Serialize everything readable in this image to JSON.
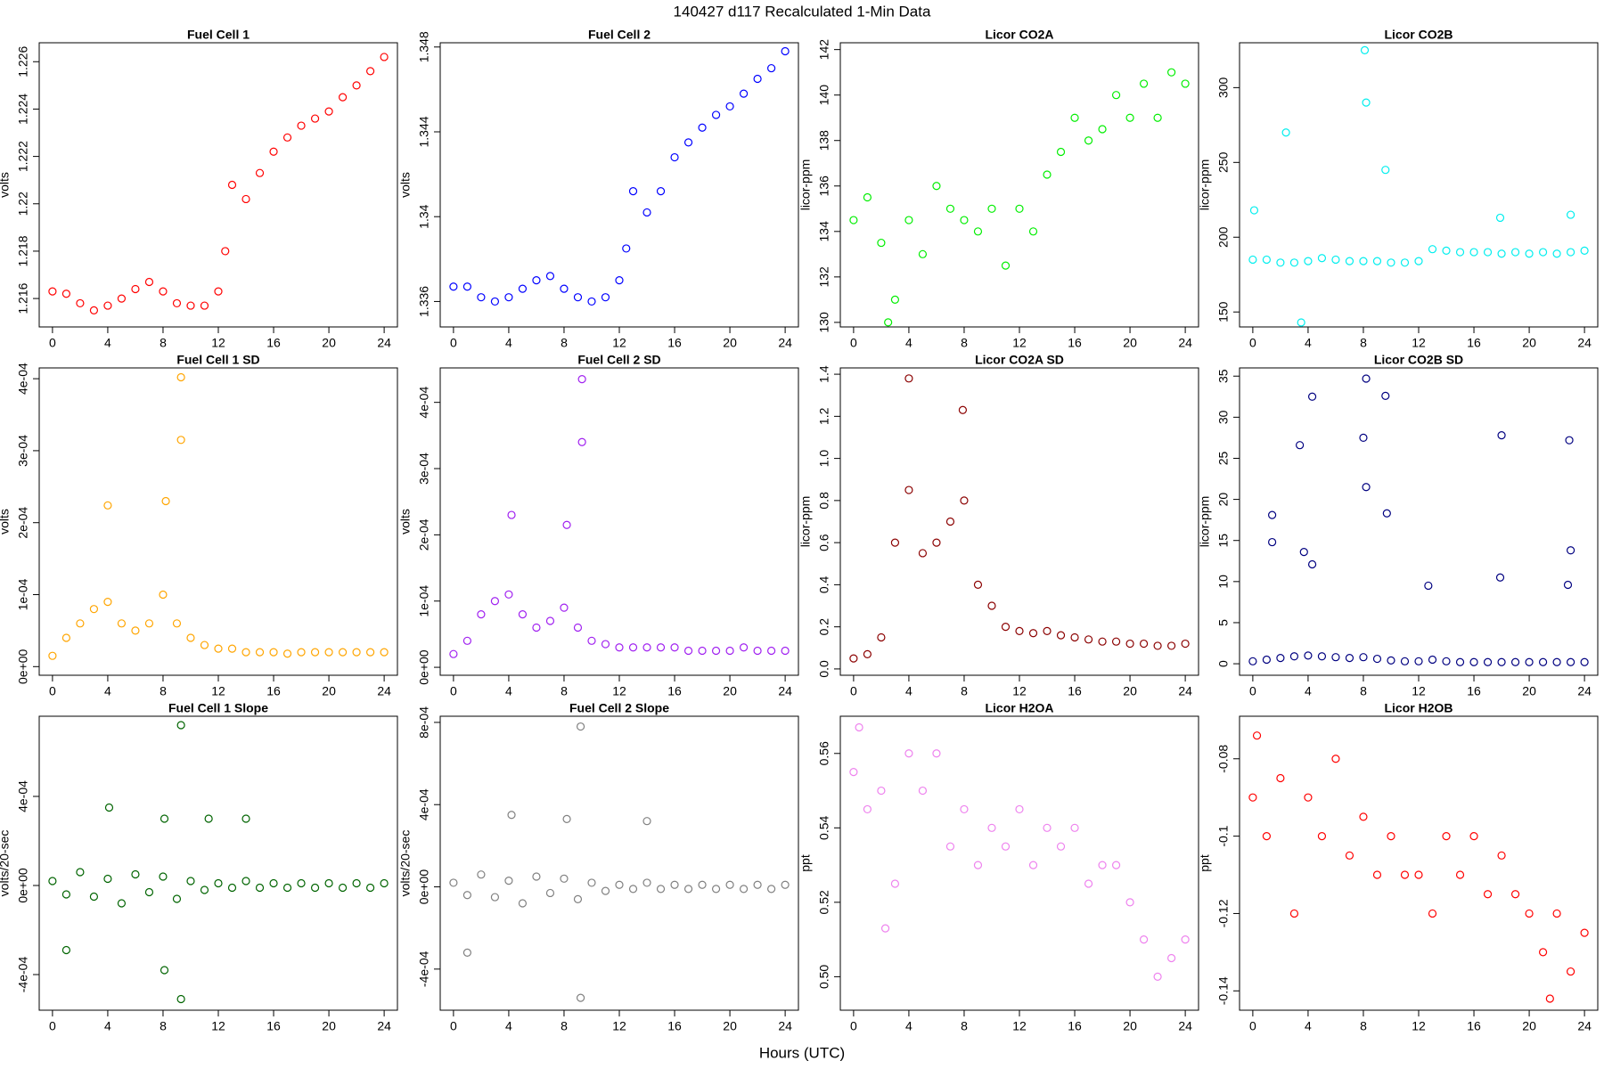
{
  "title": "140427   d117   Recalculated 1-Min Data",
  "xlabel": "Hours (UTC)",
  "chart_data": [
    {
      "type": "scatter",
      "title": "Fuel Cell 1",
      "ylabel": "volts",
      "color": "#ff0000",
      "x": [
        0,
        1,
        2,
        3,
        4,
        5,
        6,
        7,
        8,
        9,
        10,
        11,
        12,
        12.5,
        13,
        14,
        15,
        16,
        17,
        18,
        19,
        20,
        21,
        22,
        23,
        24
      ],
      "values": [
        1.2163,
        1.2162,
        1.2158,
        1.2155,
        1.2157,
        1.216,
        1.2164,
        1.2167,
        1.2163,
        1.2158,
        1.2157,
        1.2157,
        1.2163,
        1.218,
        1.2208,
        1.2202,
        1.2213,
        1.2222,
        1.2228,
        1.2233,
        1.2236,
        1.2239,
        1.2245,
        1.225,
        1.2256,
        1.2262
      ],
      "xlim": [
        -0.96,
        24.96
      ],
      "xticks": [
        0,
        4,
        8,
        12,
        16,
        20,
        24
      ],
      "ylim": [
        1.2148,
        1.2268
      ],
      "yticks": [
        1.216,
        1.218,
        1.22,
        1.222,
        1.224,
        1.226
      ]
    },
    {
      "type": "scatter",
      "title": "Fuel Cell 2",
      "ylabel": "volts",
      "color": "#0000ff",
      "x": [
        0,
        1,
        2,
        3,
        4,
        5,
        6,
        7,
        8,
        9,
        10,
        11,
        12,
        12.5,
        13,
        14,
        15,
        16,
        17,
        18,
        19,
        20,
        21,
        22,
        23,
        24
      ],
      "values": [
        1.3367,
        1.3367,
        1.3362,
        1.336,
        1.3362,
        1.3366,
        1.337,
        1.3372,
        1.3366,
        1.3362,
        1.336,
        1.3362,
        1.337,
        1.3385,
        1.3412,
        1.3402,
        1.3412,
        1.3428,
        1.3435,
        1.3442,
        1.3448,
        1.3452,
        1.3458,
        1.3465,
        1.347,
        1.3478
      ],
      "xlim": [
        -0.96,
        24.96
      ],
      "xticks": [
        0,
        4,
        8,
        12,
        16,
        20,
        24
      ],
      "ylim": [
        1.3348,
        1.3482
      ],
      "yticks": [
        1.336,
        1.34,
        1.344,
        1.348
      ]
    },
    {
      "type": "scatter",
      "title": "Licor CO2A",
      "ylabel": "licor-ppm",
      "color": "#00ee00",
      "x": [
        0,
        1,
        2,
        2.5,
        3,
        4,
        5,
        6,
        7,
        8,
        9,
        10,
        11,
        12,
        13,
        14,
        15,
        16,
        17,
        18,
        19,
        20,
        21,
        22,
        23,
        24
      ],
      "values": [
        134.5,
        135.5,
        133.5,
        130,
        131,
        134.5,
        133,
        136,
        135,
        134.5,
        134,
        135,
        132.5,
        135,
        134,
        136.5,
        137.5,
        139,
        138,
        138.5,
        140,
        139,
        140.5,
        139,
        141,
        140.5
      ],
      "xlim": [
        -0.96,
        24.96
      ],
      "xticks": [
        0,
        4,
        8,
        12,
        16,
        20,
        24
      ],
      "ylim": [
        129.8,
        142.3
      ],
      "yticks": [
        130,
        132,
        134,
        136,
        138,
        140,
        142
      ]
    },
    {
      "type": "scatter",
      "title": "Licor CO2B",
      "ylabel": "licor-ppm",
      "color": "#00eeee",
      "x": [
        0,
        1,
        2,
        3,
        4,
        5,
        6,
        7,
        8,
        9,
        10,
        11,
        12,
        13,
        14,
        15,
        16,
        17,
        18,
        19,
        20,
        21,
        22,
        23,
        24,
        8.1,
        8.2,
        3.5,
        2.4,
        9.6,
        17.9,
        23,
        0.1
      ],
      "values": [
        185,
        185,
        183,
        183,
        184,
        186,
        185,
        184,
        184,
        184,
        183,
        183,
        184,
        192,
        191,
        190,
        190,
        190,
        189,
        190,
        189,
        190,
        189,
        190,
        191,
        325,
        290,
        143,
        270,
        245,
        213,
        215,
        218
      ],
      "xlim": [
        -0.96,
        24.96
      ],
      "xticks": [
        0,
        4,
        8,
        12,
        16,
        20,
        24
      ],
      "ylim": [
        140,
        330
      ],
      "yticks": [
        150,
        200,
        250,
        300
      ]
    },
    {
      "type": "scatter",
      "title": "Fuel Cell 1 SD",
      "ylabel": "volts",
      "color": "#ffa500",
      "x": [
        0,
        1,
        2,
        3,
        4,
        5,
        6,
        7,
        8,
        9,
        10,
        11,
        12,
        13,
        14,
        15,
        16,
        17,
        18,
        19,
        20,
        21,
        22,
        23,
        24,
        9.3,
        9.3,
        8.2,
        4
      ],
      "values": [
        1.5e-05,
        4e-05,
        6e-05,
        8e-05,
        9e-05,
        6e-05,
        5e-05,
        6e-05,
        0.0001,
        6e-05,
        4e-05,
        3e-05,
        2.5e-05,
        2.5e-05,
        2e-05,
        2e-05,
        2e-05,
        1.8e-05,
        2e-05,
        2e-05,
        2e-05,
        2e-05,
        2e-05,
        2e-05,
        2e-05,
        0.000402,
        0.000315,
        0.00023,
        0.000224
      ],
      "xlim": [
        -0.96,
        24.96
      ],
      "xticks": [
        0,
        4,
        8,
        12,
        16,
        20,
        24
      ],
      "ylim": [
        -1.2e-05,
        0.000415
      ],
      "yticks": [
        {
          "value": 0,
          "label": "0e+00"
        },
        {
          "value": 0.0001,
          "label": "1e-04"
        },
        {
          "value": 0.0002,
          "label": "2e-04"
        },
        {
          "value": 0.0003,
          "label": "3e-04"
        },
        {
          "value": 0.0004,
          "label": "4e-04"
        }
      ]
    },
    {
      "type": "scatter",
      "title": "Fuel Cell 2 SD",
      "ylabel": "volts",
      "color": "#a020f0",
      "x": [
        0,
        1,
        2,
        3,
        4,
        5,
        6,
        7,
        8,
        9,
        10,
        11,
        12,
        13,
        14,
        15,
        16,
        17,
        18,
        19,
        20,
        21,
        22,
        23,
        24,
        9.3,
        9.3,
        4.2,
        8.2
      ],
      "values": [
        2e-05,
        4e-05,
        8e-05,
        0.0001,
        0.00011,
        8e-05,
        6e-05,
        7e-05,
        9e-05,
        6e-05,
        4e-05,
        3.5e-05,
        3e-05,
        3e-05,
        3e-05,
        3e-05,
        3e-05,
        2.5e-05,
        2.5e-05,
        2.5e-05,
        2.5e-05,
        3e-05,
        2.5e-05,
        2.5e-05,
        2.5e-05,
        0.000435,
        0.00034,
        0.00023,
        0.000215
      ],
      "xlim": [
        -0.96,
        24.96
      ],
      "xticks": [
        0,
        4,
        8,
        12,
        16,
        20,
        24
      ],
      "ylim": [
        -1.2e-05,
        0.000452
      ],
      "yticks": [
        {
          "value": 0,
          "label": "0e+00"
        },
        {
          "value": 0.0001,
          "label": "1e-04"
        },
        {
          "value": 0.0002,
          "label": "2e-04"
        },
        {
          "value": 0.0003,
          "label": "3e-04"
        },
        {
          "value": 0.0004,
          "label": "4e-04"
        }
      ]
    },
    {
      "type": "scatter",
      "title": "Licor CO2A SD",
      "ylabel": "licor-ppm",
      "color": "#8b0000",
      "x": [
        0,
        1,
        2,
        3,
        4,
        5,
        6,
        7,
        8,
        9,
        10,
        11,
        12,
        13,
        14,
        15,
        16,
        17,
        18,
        19,
        20,
        21,
        22,
        23,
        24,
        4,
        7.9
      ],
      "values": [
        0.05,
        0.07,
        0.15,
        0.6,
        0.85,
        0.55,
        0.6,
        0.7,
        0.8,
        0.4,
        0.3,
        0.2,
        0.18,
        0.17,
        0.18,
        0.16,
        0.15,
        0.14,
        0.13,
        0.13,
        0.12,
        0.12,
        0.11,
        0.11,
        0.12,
        1.38,
        1.23
      ],
      "xlim": [
        -0.96,
        24.96
      ],
      "xticks": [
        0,
        4,
        8,
        12,
        16,
        20,
        24
      ],
      "ylim": [
        -0.03,
        1.43
      ],
      "yticks": [
        {
          "value": 0,
          "label": "0.0"
        },
        {
          "value": 0.2,
          "label": "0.2"
        },
        {
          "value": 0.4,
          "label": "0.4"
        },
        {
          "value": 0.6,
          "label": "0.6"
        },
        {
          "value": 0.8,
          "label": "0.8"
        },
        {
          "value": 1,
          "label": "1.0"
        },
        {
          "value": 1.2,
          "label": "1.2"
        },
        {
          "value": 1.4,
          "label": "1.4"
        }
      ]
    },
    {
      "type": "scatter",
      "title": "Licor CO2B SD",
      "ylabel": "licor-ppm",
      "color": "#000080",
      "x": [
        0,
        1,
        2,
        3,
        4,
        5,
        6,
        7,
        8,
        9,
        10,
        11,
        12,
        13,
        14,
        15,
        16,
        17,
        18,
        19,
        20,
        21,
        22,
        23,
        24,
        8.2,
        4.3,
        9.6,
        3.4,
        8,
        18,
        22.9,
        1.4,
        8.2,
        9.7,
        23,
        3.7,
        4.3,
        1.4,
        12.7,
        17.9,
        22.8
      ],
      "values": [
        0.3,
        0.5,
        0.7,
        0.9,
        1,
        0.9,
        0.8,
        0.7,
        0.8,
        0.6,
        0.4,
        0.3,
        0.3,
        0.5,
        0.3,
        0.2,
        0.2,
        0.2,
        0.2,
        0.2,
        0.2,
        0.2,
        0.2,
        0.2,
        0.2,
        34.7,
        32.5,
        32.6,
        26.6,
        27.5,
        27.8,
        27.2,
        18.1,
        21.5,
        18.3,
        13.8,
        13.6,
        12.1,
        14.8,
        9.5,
        10.5,
        9.6
      ],
      "xlim": [
        -0.96,
        24.96
      ],
      "xticks": [
        0,
        4,
        8,
        12,
        16,
        20,
        24
      ],
      "ylim": [
        -1.4,
        36
      ],
      "yticks": [
        0,
        5,
        10,
        15,
        20,
        25,
        30,
        35
      ]
    },
    {
      "type": "scatter",
      "title": "Fuel Cell 1 Slope",
      "ylabel": "volts/20-sec",
      "color": "#006400",
      "x": [
        0,
        1,
        2,
        3,
        4,
        5,
        6,
        7,
        8,
        9,
        10,
        11,
        12,
        13,
        14,
        15,
        16,
        17,
        18,
        19,
        20,
        21,
        22,
        23,
        24,
        9.3,
        9.3,
        4.1,
        8.1,
        8.1,
        14,
        11.3,
        1
      ],
      "values": [
        2e-05,
        -4e-05,
        6e-05,
        -5e-05,
        3e-05,
        -8e-05,
        5e-05,
        -3e-05,
        4e-05,
        -6e-05,
        2e-05,
        -2e-05,
        1e-05,
        -1e-05,
        2e-05,
        -1e-05,
        1e-05,
        -1e-05,
        1e-05,
        -1e-05,
        1e-05,
        -1e-05,
        1e-05,
        -1e-05,
        1e-05,
        0.00072,
        -0.00051,
        0.00035,
        -0.00038,
        0.0003,
        0.0003,
        0.0003,
        -0.00029
      ],
      "xlim": [
        -0.96,
        24.96
      ],
      "xticks": [
        0,
        4,
        8,
        12,
        16,
        20,
        24
      ],
      "ylim": [
        -0.00056,
        0.00076
      ],
      "yticks": [
        {
          "value": -0.0004,
          "label": "-4e-04"
        },
        {
          "value": 0,
          "label": "0e+00"
        },
        {
          "value": 0.0004,
          "label": "4e-04"
        }
      ]
    },
    {
      "type": "scatter",
      "title": "Fuel Cell 2 Slope",
      "ylabel": "volts/20-sec",
      "color": "#808080",
      "x": [
        0,
        1,
        2,
        3,
        4,
        5,
        6,
        7,
        8,
        9,
        10,
        11,
        12,
        13,
        14,
        15,
        16,
        17,
        18,
        19,
        20,
        21,
        22,
        23,
        24,
        9.2,
        9.2,
        4.2,
        1,
        8.2,
        14
      ],
      "values": [
        2e-05,
        -4e-05,
        6e-05,
        -5e-05,
        3e-05,
        -8e-05,
        5e-05,
        -3e-05,
        4e-05,
        -6e-05,
        2e-05,
        -2e-05,
        1e-05,
        -1e-05,
        2e-05,
        -1e-05,
        1e-05,
        -1e-05,
        1e-05,
        -1e-05,
        1e-05,
        -1e-05,
        1e-05,
        -1e-05,
        1e-05,
        0.00078,
        -0.00054,
        0.00035,
        -0.00032,
        0.00033,
        0.00032
      ],
      "xlim": [
        -0.96,
        24.96
      ],
      "xticks": [
        0,
        4,
        8,
        12,
        16,
        20,
        24
      ],
      "ylim": [
        -0.0006,
        0.00083
      ],
      "yticks": [
        {
          "value": -0.0004,
          "label": "-4e-04"
        },
        {
          "value": 0,
          "label": "0e+00"
        },
        {
          "value": 0.0004,
          "label": "4e-04"
        },
        {
          "value": 0.0008,
          "label": "8e-04"
        }
      ]
    },
    {
      "type": "scatter",
      "title": "Licor H2OA",
      "ylabel": "ppt",
      "color": "#ee82ee",
      "x": [
        0,
        1,
        2,
        3,
        4,
        5,
        6,
        7,
        8,
        9,
        10,
        11,
        12,
        13,
        14,
        15,
        16,
        17,
        18,
        19,
        20,
        21,
        22,
        23,
        24,
        0.4,
        2.3
      ],
      "values": [
        0.555,
        0.545,
        0.55,
        0.525,
        0.56,
        0.55,
        0.56,
        0.535,
        0.545,
        0.53,
        0.54,
        0.535,
        0.545,
        0.53,
        0.54,
        0.535,
        0.54,
        0.525,
        0.53,
        0.53,
        0.52,
        0.51,
        0.5,
        0.505,
        0.51,
        0.567,
        0.513
      ],
      "xlim": [
        -0.96,
        24.96
      ],
      "xticks": [
        0,
        4,
        8,
        12,
        16,
        20,
        24
      ],
      "ylim": [
        0.491,
        0.57
      ],
      "yticks": [
        {
          "value": 0.5,
          "label": "0.50"
        },
        {
          "value": 0.52,
          "label": "0.52"
        },
        {
          "value": 0.54,
          "label": "0.54"
        },
        {
          "value": 0.56,
          "label": "0.56"
        }
      ]
    },
    {
      "type": "scatter",
      "title": "Licor H2OB",
      "ylabel": "ppt",
      "color": "#ff0000",
      "x": [
        0,
        1,
        2,
        3,
        4,
        5,
        6,
        7,
        8,
        9,
        10,
        11,
        12,
        13,
        14,
        15,
        16,
        17,
        18,
        19,
        20,
        21,
        22,
        23,
        24,
        0.3,
        21.5
      ],
      "values": [
        -0.09,
        -0.1,
        -0.085,
        -0.12,
        -0.09,
        -0.1,
        -0.08,
        -0.105,
        -0.095,
        -0.11,
        -0.1,
        -0.11,
        -0.11,
        -0.12,
        -0.1,
        -0.11,
        -0.1,
        -0.115,
        -0.105,
        -0.115,
        -0.12,
        -0.13,
        -0.12,
        -0.135,
        -0.125,
        -0.074,
        -0.142
      ],
      "xlim": [
        -0.96,
        24.96
      ],
      "xticks": [
        0,
        4,
        8,
        12,
        16,
        20,
        24
      ],
      "ylim": [
        -0.145,
        -0.069
      ],
      "yticks": [
        -0.14,
        -0.12,
        -0.1,
        -0.08
      ]
    }
  ]
}
